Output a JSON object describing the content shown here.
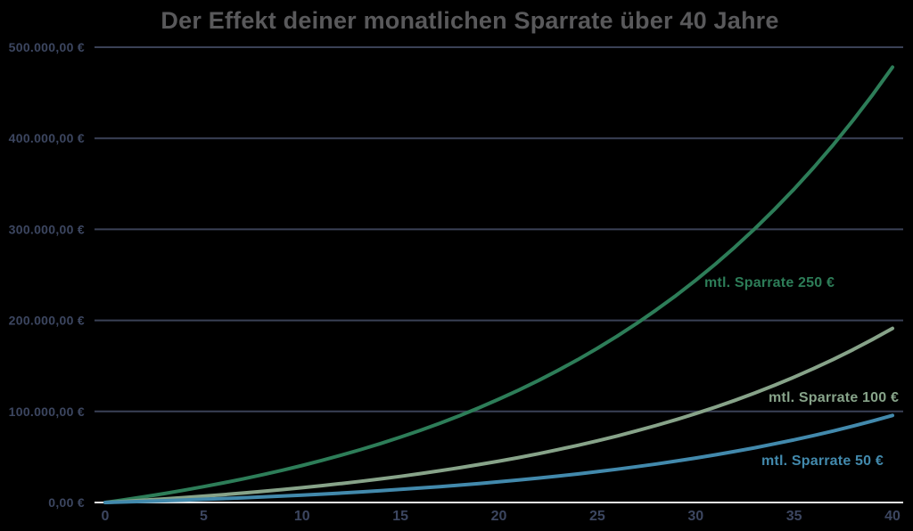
{
  "title": "Der Effekt deiner monatlichen Sparrate über 40 Jahre",
  "colors": {
    "background": "#000000",
    "title": "#59595b",
    "axis_label": "#3c4660",
    "gridline": "#3a4156",
    "zero_line": "#eaeaea"
  },
  "chart_data": {
    "type": "line",
    "title": "Der Effekt deiner monatlichen Sparrate über 40 Jahre",
    "xlabel": "",
    "ylabel": "",
    "xlim": [
      0,
      40
    ],
    "ylim": [
      0,
      500000
    ],
    "grid": "horizontal-only",
    "legend_position": "inline-curve-labels",
    "x_ticks": [
      {
        "value": 0,
        "label": "0"
      },
      {
        "value": 5,
        "label": "5"
      },
      {
        "value": 10,
        "label": "10"
      },
      {
        "value": 15,
        "label": "15"
      },
      {
        "value": 20,
        "label": "20"
      },
      {
        "value": 25,
        "label": "25"
      },
      {
        "value": 30,
        "label": "30"
      },
      {
        "value": 35,
        "label": "35"
      },
      {
        "value": 40,
        "label": "40"
      }
    ],
    "y_ticks": [
      {
        "value": 0,
        "label": "0,00 €"
      },
      {
        "value": 100000,
        "label": "100.000,00 €"
      },
      {
        "value": 200000,
        "label": "200.000,00 €"
      },
      {
        "value": 300000,
        "label": "300.000,00 €"
      },
      {
        "value": 400000,
        "label": "400.000,00 €"
      },
      {
        "value": 500000,
        "label": "500.000,00 €"
      }
    ],
    "x": [
      0,
      1,
      2,
      3,
      4,
      5,
      6,
      7,
      8,
      9,
      10,
      11,
      12,
      13,
      14,
      15,
      16,
      17,
      18,
      19,
      20,
      21,
      22,
      23,
      24,
      25,
      26,
      27,
      28,
      29,
      30,
      31,
      32,
      33,
      34,
      35,
      36,
      37,
      38,
      39,
      40
    ],
    "series": [
      {
        "name": "mtl. Sparrate 250 €",
        "color": "#2d7d58",
        "values": [
          0,
          3082,
          6349,
          9812,
          13483,
          17375,
          21501,
          25875,
          30512,
          35427,
          40638,
          46162,
          52017,
          58225,
          64806,
          71782,
          79178,
          87018,
          95328,
          104139,
          113479,
          123380,
          133876,
          145003,
          156798,
          169303,
          182559,
          196611,
          211508,
          227300,
          244041,
          261788,
          280602,
          300546,
          321689,
          344102,
          367862,
          393050,
          419752,
          448058,
          478066
        ]
      },
      {
        "name": "mtl. Sparrate 100 €",
        "color": "#87a389",
        "values": [
          0,
          1233,
          2540,
          3925,
          5393,
          6950,
          8600,
          10350,
          12205,
          14171,
          16255,
          18465,
          20807,
          23290,
          25922,
          28713,
          31671,
          34807,
          38131,
          41656,
          45392,
          49352,
          53550,
          58001,
          62719,
          67721,
          73024,
          78644,
          84603,
          90920,
          97616,
          104715,
          112241,
          120218,
          128676,
          137641,
          147145,
          157220,
          167901,
          179223,
          191226
        ]
      },
      {
        "name": "mtl. Sparrate 50 €",
        "color": "#4289ac",
        "values": [
          0,
          616,
          1270,
          1962,
          2697,
          3475,
          4300,
          5175,
          6102,
          7085,
          8128,
          9232,
          10403,
          11645,
          12961,
          14356,
          15836,
          17404,
          19066,
          20828,
          22696,
          24676,
          26775,
          29001,
          31360,
          33861,
          36512,
          39322,
          42302,
          45460,
          48808,
          52358,
          56120,
          60109,
          64338,
          68820,
          73572,
          78610,
          83950,
          89612,
          95613
        ]
      }
    ]
  }
}
